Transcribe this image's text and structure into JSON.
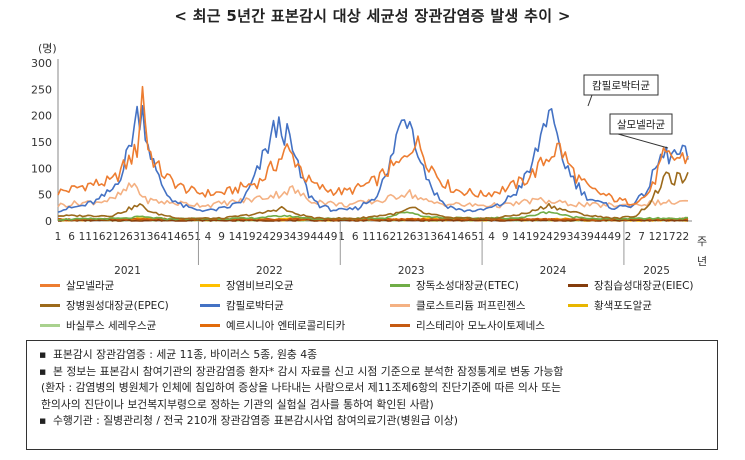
{
  "title": "< 최근 5년간 표본감시 대상 세균성 장관감염증 발생 추이 >",
  "chart_data": {
    "type": "line",
    "ylabel": "(명)",
    "xlabel": "주\n년",
    "ylim": [
      0,
      300
    ],
    "yticks": [
      0,
      50,
      100,
      150,
      200,
      250,
      300
    ],
    "years": [
      {
        "label": "2021",
        "weeks": [
          1,
          6,
          11,
          16,
          21,
          26,
          31,
          36,
          41,
          46,
          51
        ]
      },
      {
        "label": "2022",
        "weeks": [
          4,
          9,
          14,
          19,
          24,
          29,
          34,
          39,
          44,
          49
        ]
      },
      {
        "label": "2023",
        "weeks": [
          1,
          6,
          11,
          16,
          21,
          26,
          31,
          36,
          41,
          46,
          51
        ]
      },
      {
        "label": "2024",
        "weeks": [
          4,
          9,
          14,
          19,
          24,
          29,
          34,
          39,
          44,
          49
        ]
      },
      {
        "label": "2025",
        "weeks": [
          2,
          7,
          12,
          17,
          22
        ]
      }
    ],
    "annotations": [
      {
        "text": "캄필로박터균",
        "series": "캄필로박터균",
        "at": {
          "year": "2024",
          "week": 27
        }
      },
      {
        "text": "살모넬라균",
        "series": "살모넬라균",
        "at": {
          "year": "2025",
          "week": 25
        }
      }
    ],
    "series": [
      {
        "name": "살모넬라균",
        "color": "#ED7D31",
        "anchors": [
          [
            0,
            55
          ],
          [
            5,
            60
          ],
          [
            10,
            68
          ],
          [
            20,
            75
          ],
          [
            26,
            115
          ],
          [
            29,
            135
          ],
          [
            31,
            250
          ],
          [
            33,
            140
          ],
          [
            36,
            105
          ],
          [
            40,
            82
          ],
          [
            45,
            65
          ],
          [
            50,
            55
          ],
          [
            56,
            52
          ],
          [
            62,
            55
          ],
          [
            68,
            65
          ],
          [
            74,
            75
          ],
          [
            80,
            110
          ],
          [
            84,
            135
          ],
          [
            88,
            110
          ],
          [
            91,
            80
          ],
          [
            95,
            65
          ],
          [
            100,
            58
          ],
          [
            105,
            55
          ],
          [
            110,
            62
          ],
          [
            116,
            75
          ],
          [
            122,
            100
          ],
          [
            126,
            110
          ],
          [
            130,
            150
          ],
          [
            133,
            140
          ],
          [
            136,
            110
          ],
          [
            140,
            80
          ],
          [
            145,
            60
          ],
          [
            150,
            55
          ],
          [
            155,
            50
          ],
          [
            160,
            55
          ],
          [
            166,
            65
          ],
          [
            172,
            80
          ],
          [
            176,
            100
          ],
          [
            181,
            130
          ],
          [
            184,
            140
          ],
          [
            187,
            110
          ],
          [
            190,
            85
          ],
          [
            195,
            60
          ],
          [
            200,
            50
          ],
          [
            205,
            40
          ],
          [
            210,
            35
          ],
          [
            215,
            45
          ],
          [
            218,
            65
          ],
          [
            220,
            95
          ],
          [
            222,
            120
          ]
        ]
      },
      {
        "name": "캄필로박터균",
        "color": "#4472C4",
        "anchors": [
          [
            0,
            20
          ],
          [
            5,
            25
          ],
          [
            10,
            30
          ],
          [
            15,
            40
          ],
          [
            20,
            60
          ],
          [
            24,
            100
          ],
          [
            27,
            160
          ],
          [
            29,
            200
          ],
          [
            31,
            210
          ],
          [
            33,
            150
          ],
          [
            36,
            90
          ],
          [
            40,
            50
          ],
          [
            45,
            30
          ],
          [
            50,
            22
          ],
          [
            56,
            20
          ],
          [
            62,
            25
          ],
          [
            68,
            40
          ],
          [
            72,
            80
          ],
          [
            76,
            130
          ],
          [
            79,
            170
          ],
          [
            82,
            180
          ],
          [
            85,
            150
          ],
          [
            88,
            100
          ],
          [
            92,
            50
          ],
          [
            96,
            30
          ],
          [
            100,
            22
          ],
          [
            105,
            20
          ],
          [
            110,
            25
          ],
          [
            116,
            45
          ],
          [
            121,
            90
          ],
          [
            124,
            160
          ],
          [
            127,
            200
          ],
          [
            129,
            200
          ],
          [
            131,
            160
          ],
          [
            134,
            100
          ],
          [
            138,
            55
          ],
          [
            142,
            30
          ],
          [
            148,
            20
          ],
          [
            155,
            20
          ],
          [
            162,
            30
          ],
          [
            168,
            55
          ],
          [
            173,
            95
          ],
          [
            176,
            140
          ],
          [
            178,
            180
          ],
          [
            180,
            220
          ],
          [
            182,
            160
          ],
          [
            185,
            120
          ],
          [
            189,
            80
          ],
          [
            193,
            50
          ],
          [
            198,
            35
          ],
          [
            204,
            25
          ],
          [
            210,
            30
          ],
          [
            214,
            45
          ],
          [
            217,
            70
          ],
          [
            220,
            110
          ],
          [
            222,
            125
          ]
        ]
      },
      {
        "name": "장병원성대장균(EPEC)",
        "color": "#9C6A1B",
        "anchors": [
          [
            0,
            10
          ],
          [
            20,
            10
          ],
          [
            27,
            25
          ],
          [
            30,
            30
          ],
          [
            35,
            15
          ],
          [
            45,
            5
          ],
          [
            60,
            5
          ],
          [
            75,
            15
          ],
          [
            82,
            25
          ],
          [
            86,
            15
          ],
          [
            95,
            5
          ],
          [
            110,
            5
          ],
          [
            125,
            15
          ],
          [
            130,
            25
          ],
          [
            134,
            15
          ],
          [
            145,
            5
          ],
          [
            160,
            5
          ],
          [
            172,
            15
          ],
          [
            180,
            30
          ],
          [
            186,
            20
          ],
          [
            195,
            10
          ],
          [
            205,
            5
          ],
          [
            212,
            10
          ],
          [
            218,
            40
          ],
          [
            222,
            80
          ]
        ]
      },
      {
        "name": "클로스트리듐 퍼프린젠스",
        "color": "#F4B183",
        "anchors": [
          [
            0,
            30
          ],
          [
            10,
            35
          ],
          [
            20,
            40
          ],
          [
            28,
            70
          ],
          [
            32,
            40
          ],
          [
            40,
            35
          ],
          [
            55,
            30
          ],
          [
            70,
            40
          ],
          [
            80,
            50
          ],
          [
            86,
            60
          ],
          [
            92,
            40
          ],
          [
            105,
            30
          ],
          [
            120,
            40
          ],
          [
            128,
            55
          ],
          [
            136,
            35
          ],
          [
            150,
            30
          ],
          [
            165,
            30
          ],
          [
            175,
            40
          ],
          [
            182,
            35
          ],
          [
            195,
            30
          ],
          [
            210,
            30
          ],
          [
            220,
            35
          ]
        ]
      },
      {
        "name": "장독소성대장균(ETEC)",
        "color": "#70AD47",
        "anchors": [
          [
            0,
            3
          ],
          [
            25,
            5
          ],
          [
            30,
            8
          ],
          [
            40,
            4
          ],
          [
            70,
            5
          ],
          [
            83,
            10
          ],
          [
            95,
            4
          ],
          [
            120,
            6
          ],
          [
            128,
            18
          ],
          [
            135,
            8
          ],
          [
            150,
            5
          ],
          [
            170,
            6
          ],
          [
            180,
            18
          ],
          [
            188,
            8
          ],
          [
            200,
            4
          ],
          [
            222,
            5
          ]
        ]
      },
      {
        "name": "리스테리아 모노사이토제네스",
        "color": "#C55A11",
        "anchors": [
          [
            0,
            3
          ],
          [
            50,
            4
          ],
          [
            100,
            3
          ],
          [
            150,
            4
          ],
          [
            200,
            3
          ],
          [
            222,
            4
          ]
        ]
      },
      {
        "name": "장침습성대장균(EIEC)",
        "color": "#843C0C",
        "anchors": [
          [
            0,
            1
          ],
          [
            222,
            1
          ]
        ]
      },
      {
        "name": "예르시니아 엔테로콜리티카",
        "color": "#E26B0A",
        "anchors": [
          [
            0,
            2
          ],
          [
            30,
            3
          ],
          [
            70,
            2
          ],
          [
            110,
            3
          ],
          [
            150,
            2
          ],
          [
            190,
            3
          ],
          [
            222,
            2
          ]
        ]
      },
      {
        "name": "장염비브리오균",
        "color": "#FFC000",
        "anchors": [
          [
            0,
            1
          ],
          [
            25,
            3
          ],
          [
            32,
            6
          ],
          [
            40,
            2
          ],
          [
            80,
            3
          ],
          [
            86,
            6
          ],
          [
            92,
            2
          ],
          [
            130,
            3
          ],
          [
            135,
            6
          ],
          [
            142,
            2
          ],
          [
            180,
            3
          ],
          [
            186,
            5
          ],
          [
            192,
            1
          ],
          [
            222,
            1
          ]
        ]
      },
      {
        "name": "황색포도알균",
        "color": "#E8B600",
        "anchors": [
          [
            0,
            2
          ],
          [
            222,
            2
          ]
        ]
      },
      {
        "name": "바실루스 세레우스균",
        "color": "#A9D18E",
        "anchors": [
          [
            0,
            1
          ],
          [
            222,
            1
          ]
        ]
      }
    ]
  },
  "legend": [
    {
      "label": "살모넬라균",
      "color": "#ED7D31"
    },
    {
      "label": "장염비브리오균",
      "color": "#FFC000"
    },
    {
      "label": "장독소성대장균(ETEC)",
      "color": "#70AD47"
    },
    {
      "label": "장침습성대장균(EIEC)",
      "color": "#843C0C"
    },
    {
      "label": "장병원성대장균(EPEC)",
      "color": "#9C6A1B"
    },
    {
      "label": "캄필로박터균",
      "color": "#4472C4"
    },
    {
      "label": "클로스트리듐 퍼프린젠스",
      "color": "#F4B183"
    },
    {
      "label": "황색포도알균",
      "color": "#E8B600"
    },
    {
      "label": "바실루스 세레우스균",
      "color": "#A9D18E"
    },
    {
      "label": "예르시니아 엔테로콜리티카",
      "color": "#E26B0A"
    },
    {
      "label": "리스테리아 모노사이토제네스",
      "color": "#C55A11"
    }
  ],
  "notes": {
    "line1": "표본감시 장관감염증 : 세균 11종, 바이러스 5종, 원충 4종",
    "line2": "본 정보는 표본감시 참여기관의 장관감염증 환자* 감시 자료를 신고 시점 기준으로 분석한 잠정통계로 변동 가능함",
    "line3": "(환자 : 감염병의 병원체가 인체에 침입하여 증상을 나타내는 사람으로서 제11조제6항의 진단기준에 따른 의사 또는",
    "line4": "한의사의 진단이나 보건복지부령으로 정하는 기관의 실험실 검사를 통하여 확인된 사람)",
    "line5": "수행기관 : 질병관리청 / 전국 210개 장관감염증 표본감시사업 참여의료기관(병원급 이상)",
    "bullet": "▪"
  }
}
